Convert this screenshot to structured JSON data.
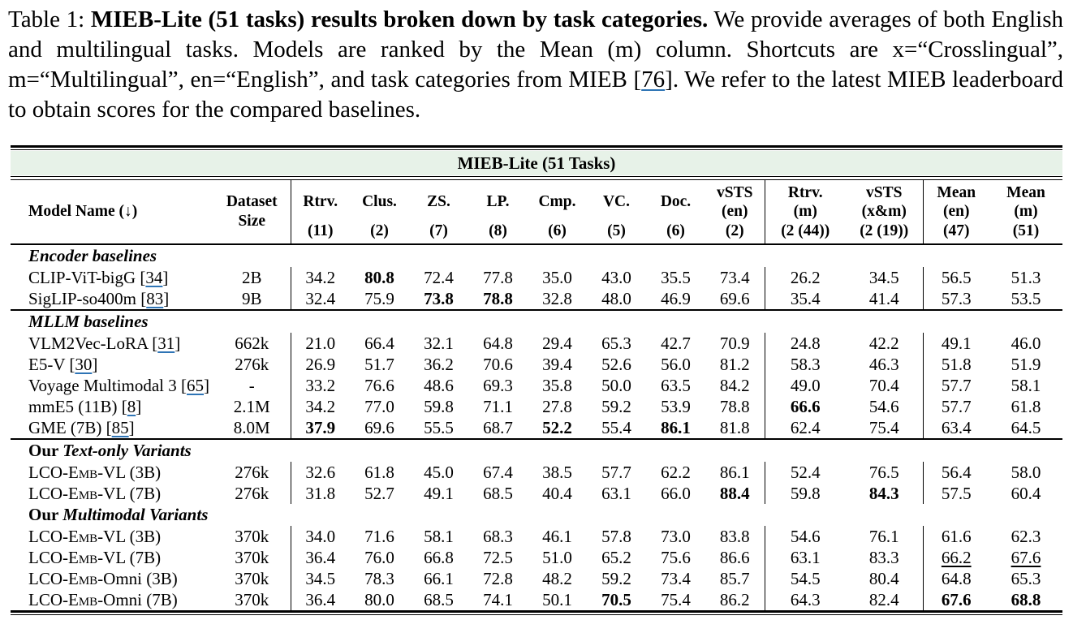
{
  "caption": {
    "prefix": "Table 1: ",
    "bold": "MIEB-Lite (51 tasks) results broken down by task categories.",
    "before_cite": " We provide averages of both English and multilingual tasks. Models are ranked by the Mean (m) column. Shortcuts are x=“Crosslingual”, m=“Multilingual”, en=“English”, and task categories from MIEB [",
    "cite": "76",
    "after_cite": "]. We refer to the latest MIEB leaderboard to obtain scores for the compared baselines."
  },
  "link_color": "#2e74b5",
  "banner_bg": "#e7f2e8",
  "table": {
    "banner": "MIEB-Lite (51 Tasks)",
    "cite_brackets": [
      "[",
      "]"
    ],
    "columns": {
      "model": "Model Name (↓)",
      "dataset_top": "Dataset",
      "dataset_bottom": "Size",
      "metrics": [
        {
          "top": "Rtrv.",
          "mid": "",
          "count": "(11)"
        },
        {
          "top": "Clus.",
          "mid": "",
          "count": "(2)"
        },
        {
          "top": "ZS.",
          "mid": "",
          "count": "(7)"
        },
        {
          "top": "LP.",
          "mid": "",
          "count": "(8)"
        },
        {
          "top": "Cmp.",
          "mid": "",
          "count": "(6)"
        },
        {
          "top": "VC.",
          "mid": "",
          "count": "(5)"
        },
        {
          "top": "Doc.",
          "mid": "",
          "count": "(6)"
        },
        {
          "top": "vSTS",
          "mid": "(en)",
          "count": "(2)"
        },
        {
          "top": "Rtrv.",
          "mid": "(m)",
          "count": "(2 (44))"
        },
        {
          "top": "vSTS",
          "mid": "(x&m)",
          "count": "(2 (19))"
        },
        {
          "top": "Mean",
          "mid": "(en)",
          "count": "(47)"
        },
        {
          "top": "Mean",
          "mid": "(m)",
          "count": "(51)"
        }
      ]
    },
    "sections": [
      {
        "label_roman": "",
        "label_italic": "Encoder baselines",
        "rule_before": false,
        "rows": [
          {
            "pre": "CLIP-ViT-bigG ",
            "sc": "",
            "post": "",
            "cite": "34",
            "size": "2B",
            "values": [
              "34.2",
              "80.8",
              "72.4",
              "77.8",
              "35.0",
              "43.0",
              "35.5",
              "73.4",
              "26.2",
              "34.5",
              "56.5",
              "51.3"
            ],
            "bold": [
              1
            ],
            "ul": []
          },
          {
            "pre": "SigLIP-so400m ",
            "sc": "",
            "post": "",
            "cite": "83",
            "size": "9B",
            "values": [
              "32.4",
              "75.9",
              "73.8",
              "78.8",
              "32.8",
              "48.0",
              "46.9",
              "69.6",
              "35.4",
              "41.4",
              "57.3",
              "53.5"
            ],
            "bold": [
              2,
              3
            ],
            "ul": []
          }
        ]
      },
      {
        "label_roman": "",
        "label_italic": "MLLM baselines",
        "rule_before": true,
        "rows": [
          {
            "pre": "VLM2Vec-LoRA ",
            "sc": "",
            "post": "",
            "cite": "31",
            "size": "662k",
            "values": [
              "21.0",
              "66.4",
              "32.1",
              "64.8",
              "29.4",
              "65.3",
              "42.7",
              "70.9",
              "24.8",
              "42.2",
              "49.1",
              "46.0"
            ],
            "bold": [],
            "ul": []
          },
          {
            "pre": "E5-V ",
            "sc": "",
            "post": "",
            "cite": "30",
            "size": "276k",
            "values": [
              "26.9",
              "51.7",
              "36.2",
              "70.6",
              "39.4",
              "52.6",
              "56.0",
              "81.2",
              "58.3",
              "46.3",
              "51.8",
              "51.9"
            ],
            "bold": [],
            "ul": []
          },
          {
            "pre": "Voyage Multimodal 3 ",
            "sc": "",
            "post": "",
            "cite": "65",
            "size": "-",
            "values": [
              "33.2",
              "76.6",
              "48.6",
              "69.3",
              "35.8",
              "50.0",
              "63.5",
              "84.2",
              "49.0",
              "70.4",
              "57.7",
              "58.1"
            ],
            "bold": [],
            "ul": []
          },
          {
            "pre": "mmE5 (11B) ",
            "sc": "",
            "post": "",
            "cite": "8",
            "size": "2.1M",
            "values": [
              "34.2",
              "77.0",
              "59.8",
              "71.1",
              "27.8",
              "59.2",
              "53.9",
              "78.8",
              "66.6",
              "54.6",
              "57.7",
              "61.8"
            ],
            "bold": [
              8
            ],
            "ul": []
          },
          {
            "pre": "GME (7B) ",
            "sc": "",
            "post": "",
            "cite": "85",
            "size": "8.0M",
            "values": [
              "37.9",
              "69.6",
              "55.5",
              "68.7",
              "52.2",
              "55.4",
              "86.1",
              "81.8",
              "62.4",
              "75.4",
              "63.4",
              "64.5"
            ],
            "bold": [
              0,
              4,
              6
            ],
            "ul": []
          }
        ]
      },
      {
        "label_roman": "Our ",
        "label_italic": "Text-only Variants",
        "rule_before": true,
        "rows": [
          {
            "pre": "LCO-E",
            "sc": "mb",
            "post": "-VL (3B)",
            "cite": "",
            "size": "276k",
            "values": [
              "32.6",
              "61.8",
              "45.0",
              "67.4",
              "38.5",
              "57.7",
              "62.2",
              "86.1",
              "52.4",
              "76.5",
              "56.4",
              "58.0"
            ],
            "bold": [],
            "ul": []
          },
          {
            "pre": "LCO-E",
            "sc": "mb",
            "post": "-VL (7B)",
            "cite": "",
            "size": "276k",
            "values": [
              "31.8",
              "52.7",
              "49.1",
              "68.5",
              "40.4",
              "63.1",
              "66.0",
              "88.4",
              "59.8",
              "84.3",
              "57.5",
              "60.4"
            ],
            "bold": [
              7,
              9
            ],
            "ul": []
          }
        ]
      },
      {
        "label_roman": "Our ",
        "label_italic": "Multimodal Variants",
        "rule_before": false,
        "rows": [
          {
            "pre": "LCO-E",
            "sc": "mb",
            "post": "-VL (3B)",
            "cite": "",
            "size": "370k",
            "values": [
              "34.0",
              "71.6",
              "58.1",
              "68.3",
              "46.1",
              "57.8",
              "73.0",
              "83.8",
              "54.6",
              "76.1",
              "61.6",
              "62.3"
            ],
            "bold": [],
            "ul": []
          },
          {
            "pre": "LCO-E",
            "sc": "mb",
            "post": "-VL (7B)",
            "cite": "",
            "size": "370k",
            "values": [
              "36.4",
              "76.0",
              "66.8",
              "72.5",
              "51.0",
              "65.2",
              "75.6",
              "86.6",
              "63.1",
              "83.3",
              "66.2",
              "67.6"
            ],
            "bold": [],
            "ul": [
              10,
              11
            ]
          },
          {
            "pre": "LCO-E",
            "sc": "mb",
            "post": "-Omni (3B)",
            "cite": "",
            "size": "370k",
            "values": [
              "34.5",
              "78.3",
              "66.1",
              "72.8",
              "48.2",
              "59.2",
              "73.4",
              "85.7",
              "54.5",
              "80.4",
              "64.8",
              "65.3"
            ],
            "bold": [],
            "ul": []
          },
          {
            "pre": "LCO-E",
            "sc": "mb",
            "post": "-Omni (7B)",
            "cite": "",
            "size": "370k",
            "values": [
              "36.4",
              "80.0",
              "68.5",
              "74.1",
              "50.1",
              "70.5",
              "75.4",
              "86.2",
              "64.3",
              "82.4",
              "67.6",
              "68.8"
            ],
            "bold": [
              5,
              10,
              11
            ],
            "ul": []
          }
        ]
      }
    ]
  }
}
